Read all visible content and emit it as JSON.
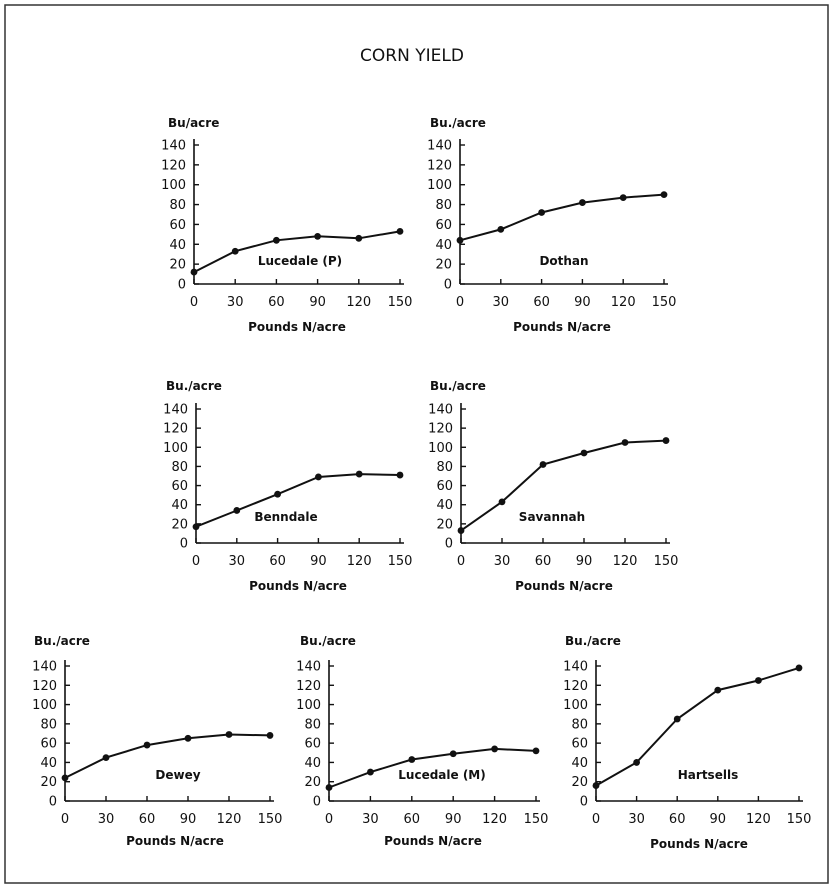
{
  "title": "CORN YIELD",
  "chart_data": [
    {
      "type": "line",
      "annotation": "Lucedale (P)",
      "ylabel": "Bu/acre",
      "xlabel": "Pounds N/acre",
      "x": [
        0,
        30,
        60,
        90,
        120,
        150
      ],
      "y": [
        12,
        33,
        44,
        48,
        46,
        53
      ],
      "xticks": [
        0,
        30,
        60,
        90,
        120,
        150
      ],
      "yticks": [
        0,
        20,
        40,
        60,
        80,
        100,
        120,
        140
      ],
      "xlim": [
        0,
        150
      ],
      "ylim": [
        0,
        140
      ],
      "grid": false
    },
    {
      "type": "line",
      "annotation": "Dothan",
      "ylabel": "Bu./acre",
      "xlabel": "Pounds N/acre",
      "x": [
        0,
        30,
        60,
        90,
        120,
        150
      ],
      "y": [
        44,
        55,
        72,
        82,
        87,
        90
      ],
      "xticks": [
        0,
        30,
        60,
        90,
        120,
        150
      ],
      "yticks": [
        0,
        20,
        40,
        60,
        80,
        100,
        120,
        140
      ],
      "xlim": [
        0,
        150
      ],
      "ylim": [
        0,
        140
      ],
      "grid": false
    },
    {
      "type": "line",
      "annotation": "Benndale",
      "ylabel": "Bu./acre",
      "xlabel": "Pounds N/acre",
      "x": [
        0,
        30,
        60,
        90,
        120,
        150
      ],
      "y": [
        17,
        34,
        51,
        69,
        72,
        71
      ],
      "xticks": [
        0,
        30,
        60,
        90,
        120,
        150
      ],
      "yticks": [
        0,
        20,
        40,
        60,
        80,
        100,
        120,
        140
      ],
      "xlim": [
        0,
        150
      ],
      "ylim": [
        0,
        140
      ],
      "grid": false
    },
    {
      "type": "line",
      "annotation": "Savannah",
      "ylabel": "Bu./acre",
      "xlabel": "Pounds N/acre",
      "x": [
        0,
        30,
        60,
        90,
        120,
        150
      ],
      "y": [
        13,
        43,
        82,
        94,
        105,
        107
      ],
      "xticks": [
        0,
        30,
        60,
        90,
        120,
        150
      ],
      "yticks": [
        0,
        20,
        40,
        60,
        80,
        100,
        120,
        140
      ],
      "xlim": [
        0,
        150
      ],
      "ylim": [
        0,
        140
      ],
      "grid": false
    },
    {
      "type": "line",
      "annotation": "Dewey",
      "ylabel": "Bu./acre",
      "xlabel": "Pounds N/acre",
      "x": [
        0,
        30,
        60,
        90,
        120,
        150
      ],
      "y": [
        24,
        45,
        58,
        65,
        69,
        68
      ],
      "xticks": [
        0,
        30,
        60,
        90,
        120,
        150
      ],
      "yticks": [
        0,
        20,
        40,
        60,
        80,
        100,
        120,
        140
      ],
      "xlim": [
        0,
        150
      ],
      "ylim": [
        0,
        140
      ],
      "grid": false
    },
    {
      "type": "line",
      "annotation": "Lucedale (M)",
      "ylabel": "Bu./acre",
      "xlabel": "Pounds N/acre",
      "x": [
        0,
        30,
        60,
        90,
        120,
        150
      ],
      "y": [
        14,
        30,
        43,
        49,
        54,
        52
      ],
      "xticks": [
        0,
        30,
        60,
        90,
        120,
        150
      ],
      "yticks": [
        0,
        20,
        40,
        60,
        80,
        100,
        120,
        140
      ],
      "xlim": [
        0,
        150
      ],
      "ylim": [
        0,
        140
      ],
      "grid": false
    },
    {
      "type": "line",
      "annotation": "Hartsells",
      "ylabel": "Bu./acre",
      "xlabel": "Pounds N/acre",
      "x": [
        0,
        30,
        60,
        90,
        120,
        150
      ],
      "y": [
        16,
        40,
        85,
        115,
        125,
        138
      ],
      "xticks": [
        0,
        30,
        60,
        90,
        120,
        150
      ],
      "yticks": [
        0,
        20,
        40,
        60,
        80,
        100,
        120,
        140
      ],
      "xlim": [
        0,
        150
      ],
      "ylim": [
        0,
        140
      ],
      "grid": false
    }
  ]
}
